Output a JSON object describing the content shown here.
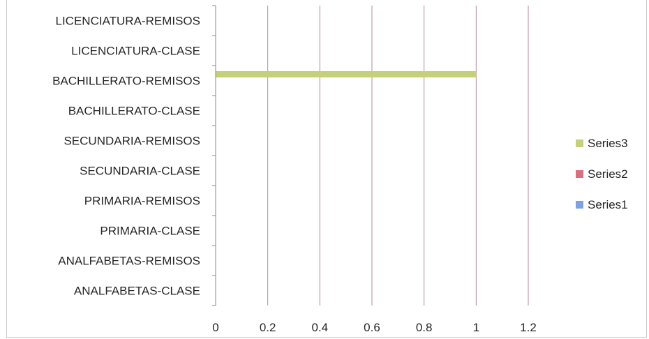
{
  "chart_data": {
    "type": "bar",
    "orientation": "horizontal",
    "categories": [
      "ANALFABETAS-CLASE",
      "ANALFABETAS-REMISOS",
      "PRIMARIA-CLASE",
      "PRIMARIA-REMISOS",
      "SECUNDARIA-CLASE",
      "SECUNDARIA-REMISOS",
      "BACHILLERATO-CLASE",
      "BACHILLERATO-REMISOS",
      "LICENCIATURA-CLASE",
      "LICENCIATURA-REMISOS"
    ],
    "series": [
      {
        "name": "Series1",
        "color": "#7ea3dc",
        "values": [
          0,
          0,
          0,
          0,
          0,
          0,
          0,
          0,
          0,
          0
        ]
      },
      {
        "name": "Series2",
        "color": "#d9707f",
        "values": [
          0,
          0,
          0,
          0,
          0,
          0,
          0,
          0,
          0,
          0
        ]
      },
      {
        "name": "Series3",
        "color": "#c6cf7b",
        "values": [
          0,
          0,
          0,
          0,
          0,
          0,
          0,
          1,
          0,
          0
        ]
      }
    ],
    "xlim": [
      0,
      1.2
    ],
    "xticks": [
      "0",
      "0.2",
      "0.4",
      "0.6",
      "0.8",
      "1",
      "1.2"
    ],
    "grid": true,
    "legend": "right",
    "legend_order": [
      "Series3",
      "Series2",
      "Series1"
    ],
    "gridline_color": "#b08a96"
  }
}
